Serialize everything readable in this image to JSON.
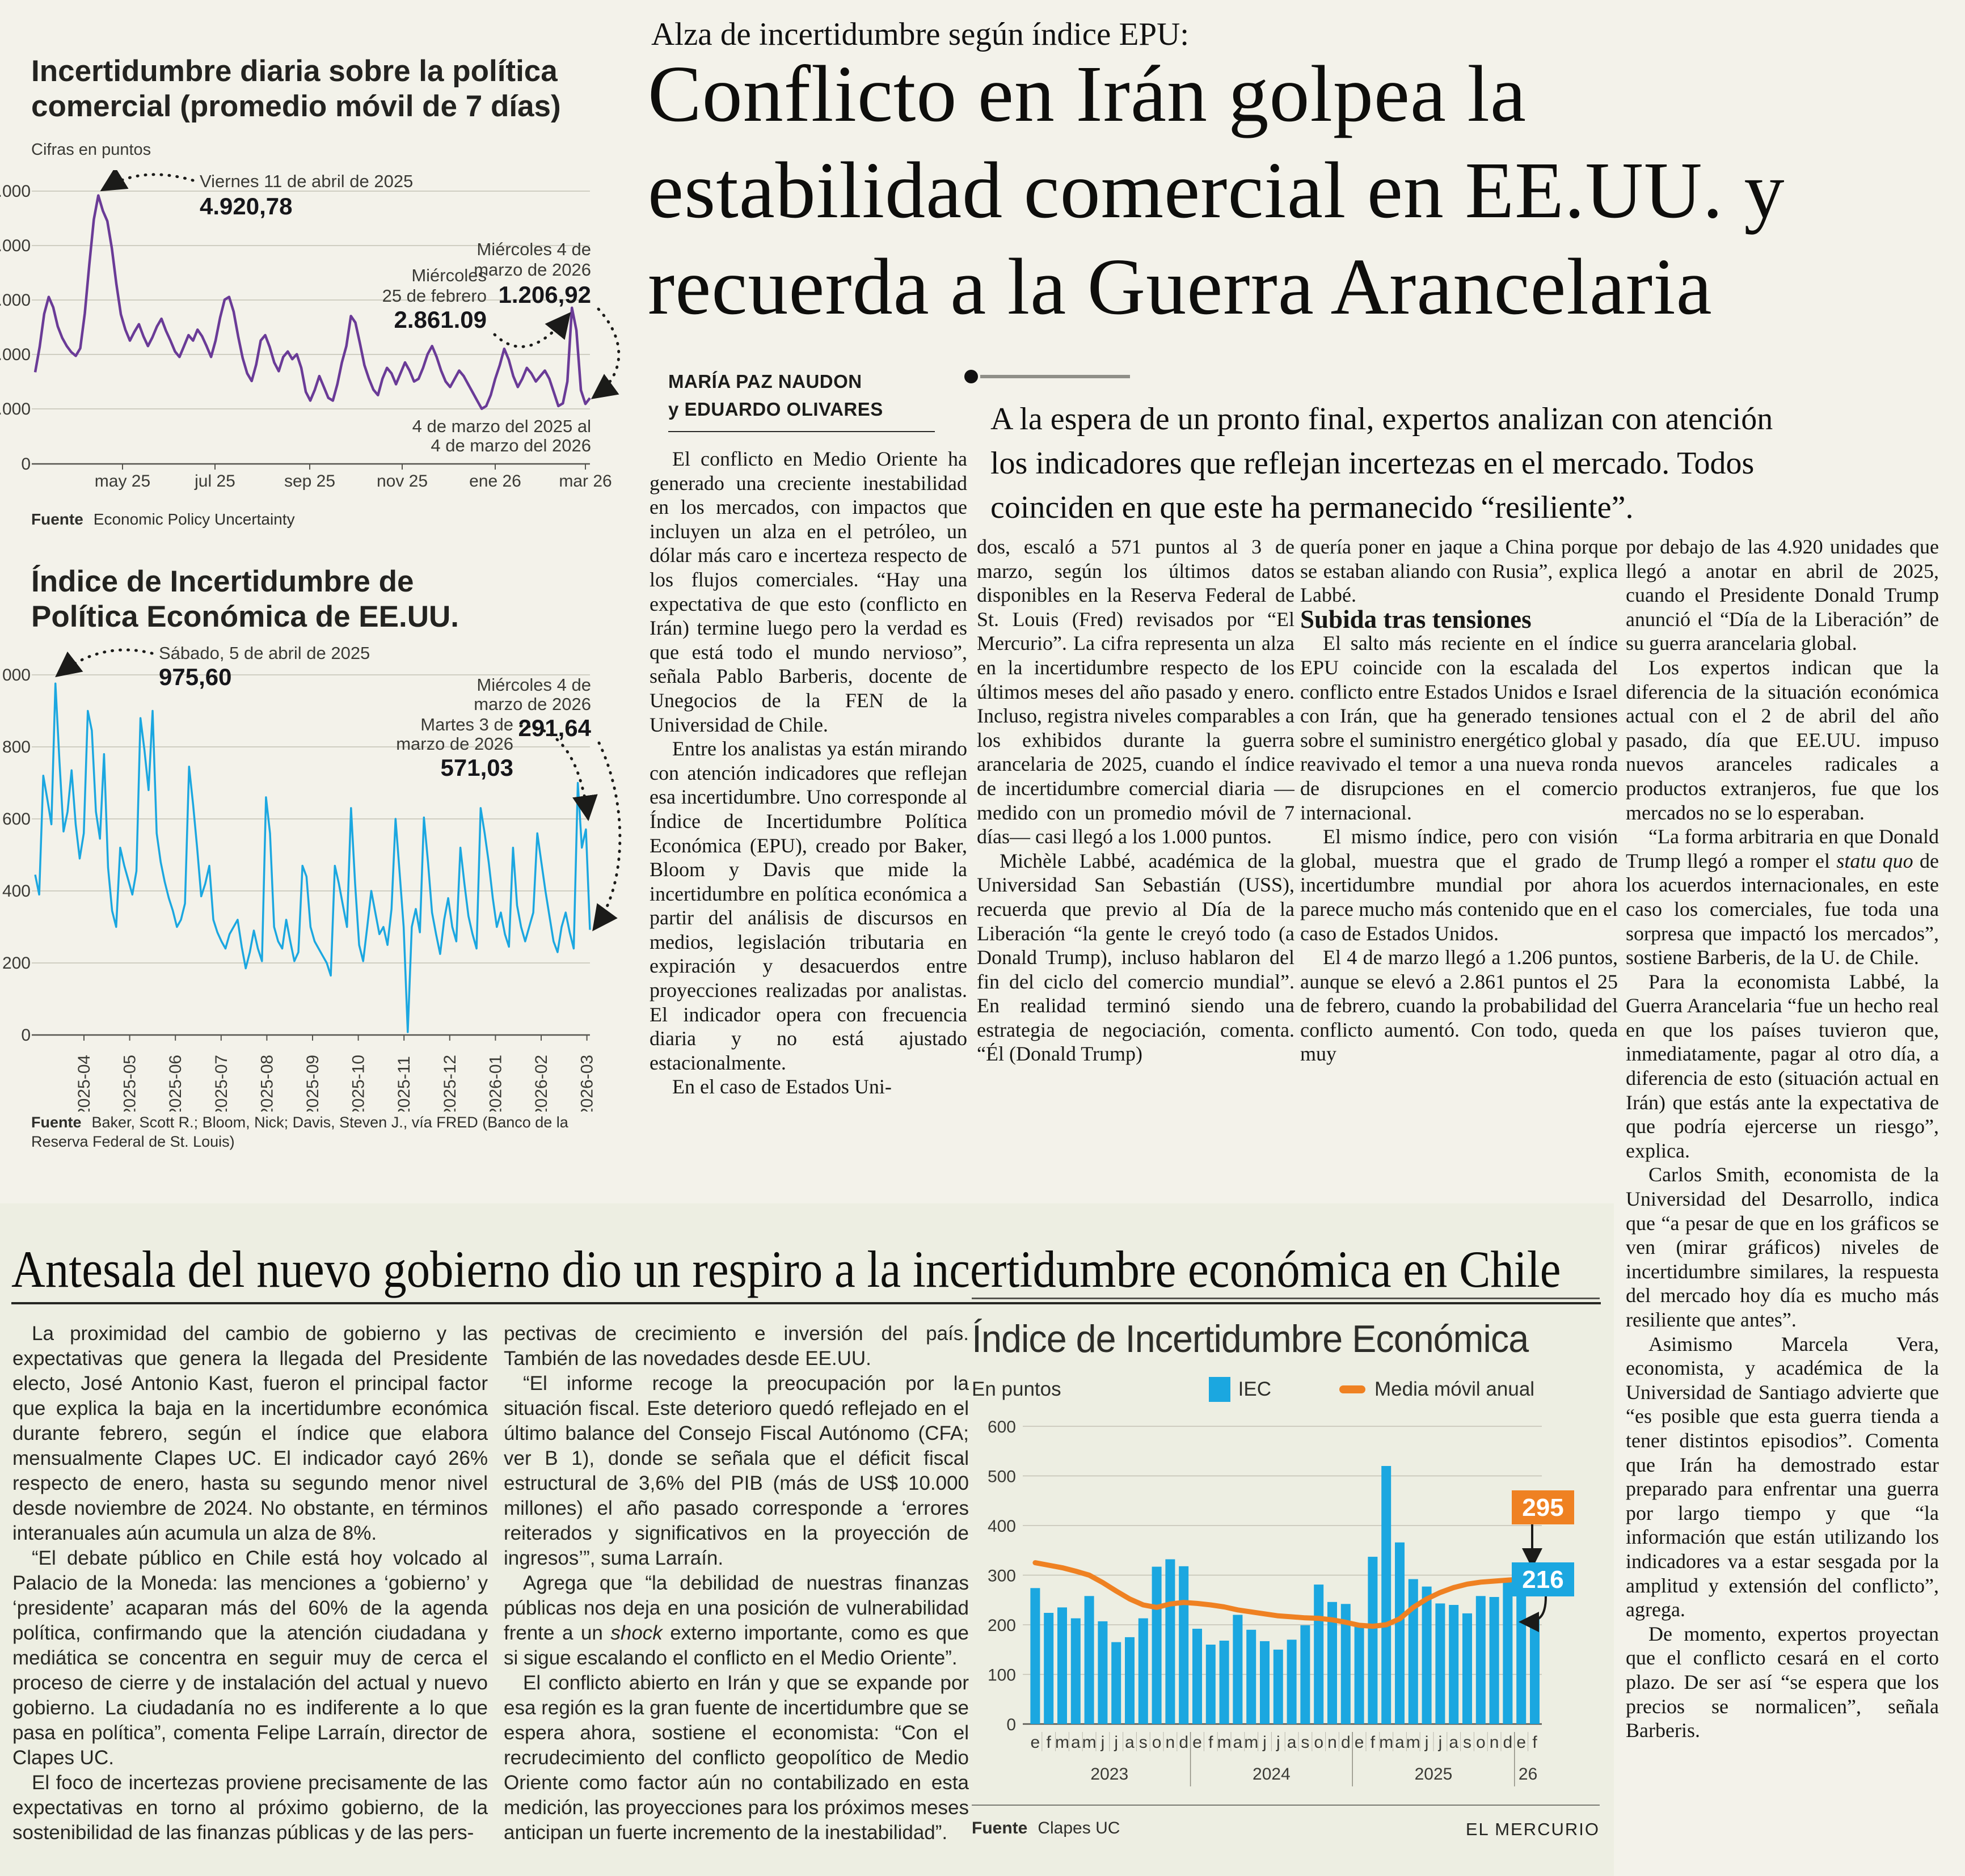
{
  "article": {
    "kicker": "Alza de incertidumbre según índice EPU:",
    "headline_lines": [
      "Conflicto en Irán golpea la",
      "estabilidad comercial en EE.UU. y",
      "recuerda a la Guerra Arancelaria"
    ],
    "byline_line1": "MARÍA PAZ NAUDON",
    "byline_line2": "y EDUARDO OLIVARES",
    "lead_lines": [
      "A la espera de un pronto final, expertos analizan con atención",
      "los indicadores que reflejan incertezas en el mercado. Todos",
      "coinciden en que este ha permanecido “resiliente”."
    ],
    "col1": [
      "El conflicto en Medio Oriente ha generado una creciente inestabilidad en los mercados, con impactos que incluyen un alza en el petróleo, un dólar más caro e incerteza respecto de los flujos comerciales. “Hay una expectativa de que esto (conflicto en Irán) termine luego pero la verdad es que está todo el mundo nervioso”, señala Pablo Barberis, docente de Unegocios de la FEN de la Universidad de Chile.",
      "Entre los analistas ya están mirando con atención indicadores que reflejan esa incertidumbre. Uno corresponde al Índice de Incertidumbre Política Económica (EPU), creado por Baker, Bloom y Davis que mide la incertidumbre en política económica a partir del análisis de discursos en medios, legislación tributaria en expiración y desacuerdos entre proyecciones realizadas por analistas. El indicador opera con frecuencia diaria y no está ajustado estacionalmente.",
      "En el caso de Estados Uni-"
    ],
    "col2": [
      "dos, escaló a 571 puntos al 3 de marzo, según los últimos datos disponibles en la Reserva Federal de St. Louis (Fred) revisados por “El Mercurio”. La cifra representa un alza en la incertidumbre respecto de los últimos meses del año pasado y enero. Incluso, registra niveles comparables a los exhibidos durante la guerra arancelaria de 2025, cuando el índice de incertidumbre comercial diaria —medido con un promedio móvil de 7 días— casi llegó a los 1.000 puntos.",
      "Michèle Labbé, académica de la Universidad San Sebastián (USS), recuerda que previo al Día de la Liberación “la gente le creyó todo (a Donald Trump), incluso hablaron del fin del ciclo del comercio mundial”. En realidad terminó siendo una estrategia de negociación, comenta. “Él (Donald Trump)"
    ],
    "col3_p1": "quería poner en jaque a China porque se estaban aliando con Rusia”, explica Labbé.",
    "subhead": "Subida tras tensiones",
    "col3_rest": [
      "El salto más reciente en el índice EPU coincide con la escalada del conflicto entre Estados Unidos e Israel con Irán, que ha generado tensiones sobre el suministro energético global y reavivado el temor a una nueva ronda de disrupciones en el comercio internacional.",
      "El mismo índice, pero con visión global, muestra que el grado de incertidumbre mundial por ahora parece mucho más contenido que en el caso de Estados Unidos.",
      "El 4 de marzo llegó a 1.206 puntos, aunque se elevó a 2.861 puntos el 25 de febrero, cuando la probabilidad del conflicto aumentó. Con todo, queda muy"
    ],
    "col4_p1": "por debajo de las 4.920 unidades que llegó a anotar en abril de 2025, cuando el Presidente Donald Trump anunció el “Día de la Liberación” de su guerra arancelaria global.",
    "col4_p2": "Los expertos indican que la diferencia de la situación económica actual con el 2 de abril del año pasado, día que EE.UU. impuso nuevos aranceles radicales a productos extranjeros, fue que los mercados no se lo esperaban.",
    "col4_p3_pre": "“La forma arbitraria en que Donald Trump llegó a romper el ",
    "col4_p3_it": "statu quo",
    "col4_p3_post": " de los acuerdos internacionales, en este caso los comerciales, fue toda una sorpresa que impactó los mercados”, sostiene Barberis, de la U. de Chile.",
    "col4_p4": "Para la economista Labbé, la Guerra Arancelaria “fue un hecho real en que los países tuvieron que, inmediatamente, pagar al otro día, a diferencia de esto (situación actual en Irán) que estás ante la expectativa de que podría ejercerse un riesgo”, explica.",
    "col4_p5": "Carlos Smith, economista de la Universidad del Desarrollo, indica que “a pesar de que en los gráficos se ven (mirar gráficos) niveles de incertidumbre similares, la respuesta del mercado hoy día es mucho más resiliente que antes”.",
    "col4_p6": "Asimismo Marcela Vera, economista, y académica de la Universidad de Santiago advierte que “es posible que esta guerra tienda a tener distintos episodios”. Comenta que Irán ha demostrado estar preparado para enfrentar una guerra por largo tiempo y que “la información que están utilizando los indicadores va a estar sesgada por la amplitud y extensión del conflicto”, agrega.",
    "col4_p7": "De momento, expertos proyectan que el conflicto cesará en el corto plazo. De ser así “se espera que los precios se normalicen”, señala Barberis."
  },
  "bottom": {
    "headline": "Antesala del nuevo gobierno dio un respiro a la incertidumbre económica en Chile",
    "colA": [
      "La proximidad del cambio de gobierno y las expectativas que genera la llegada del Presidente electo, José Antonio Kast, fueron el principal factor que explica la baja en la incertidumbre económica durante febrero, según el índice que elabora mensualmente Clapes UC. El indicador cayó 26% respecto de enero, hasta su segundo menor nivel desde noviembre de 2024. No obstante, en términos interanuales aún acumula un alza de 8%.",
      "“El debate público en Chile está hoy volcado al Palacio de la Moneda: las menciones a ‘gobierno’ y ‘presidente’ acaparan más del 60% de la agenda política, confirmando que la atención ciudadana y mediática se concentra en seguir muy de cerca el proceso de cierre y de instalación del actual y nuevo gobierno. La ciudadanía no es indiferente a lo que pasa en política”, comenta Felipe Larraín, director de Clapes UC.",
      "El foco de incertezas proviene precisamente de las expectativas en torno al próximo gobierno, de la sostenibilidad de las finanzas públicas y de las pers-"
    ],
    "colB_p1": "pectivas de crecimiento e inversión del país. También de las novedades desde EE.UU.",
    "colB_p2": "“El informe recoge la preocupación por la situación fiscal. Este deterioro quedó reflejado en el último balance del Consejo Fiscal Autónomo (CFA; ver B 1), donde se señala que el déficit fiscal estructural de 3,6% del PIB (más de US$ 10.000 millones) el año pasado corresponde a ‘errores reiterados y significativos en la proyección de ingresos’”, suma Larraín.",
    "colB_p3_pre": "Agrega que “la debilidad de nuestras finanzas públicas nos deja en una posición de vulnerabilidad frente a un ",
    "colB_p3_it": "shock",
    "colB_p3_post": " externo importante, como es que si sigue escalando el conflicto en el Medio Oriente”.",
    "colB_p4": "El conflicto abierto en Irán y que se expande por esa región es la gran fuente de incertidumbre que se espera ahora, sostiene el economista: “Con el recrudecimiento del conflicto geopolítico de Medio Oriente como factor aún no contabilizado en esta medición, las proyecciones para los próximos meses anticipan un fuerte incremento de la inestabilidad”.",
    "credit": "EL MERCURIO"
  },
  "chart_data": [
    {
      "type": "line",
      "title_line1": "Incertidumbre diaria sobre la política",
      "title_line2": "comercial (promedio móvil de 7 días)",
      "subtitle": "Cifras en puntos",
      "source_label": "Fuente",
      "source": "Economic Policy Uncertainty",
      "line_color": "#6a3b97",
      "ylim": [
        0,
        5000
      ],
      "y_ticks_displayed": [
        ".000",
        ".000",
        ".000",
        ".000",
        ".000",
        "0"
      ],
      "x_ticks": [
        "may 25",
        "jul 25",
        "sep 25",
        "nov 25",
        "ene 26",
        "mar 26"
      ],
      "ann_peak_label": "Viernes 11 de abril de 2025",
      "ann_peak_value": "4.920,78",
      "ann_feb_label1": "Miércoles",
      "ann_feb_label2": "25 de febrero",
      "ann_feb_value": "2.861.09",
      "ann_end_label1": "Miércoles 4 de",
      "ann_end_label2": "marzo de 2026",
      "ann_end_value": "1.206,92",
      "range_note1": "4 de marzo del 2025 al",
      "range_note2": "4 de marzo del 2026",
      "values": [
        1680,
        2150,
        2750,
        3060,
        2870,
        2520,
        2310,
        2160,
        2050,
        1980,
        2120,
        2760,
        3650,
        4480,
        4920,
        4640,
        4450,
        3950,
        3300,
        2740,
        2460,
        2260,
        2420,
        2560,
        2340,
        2160,
        2320,
        2520,
        2660,
        2440,
        2260,
        2060,
        1960,
        2160,
        2360,
        2260,
        2460,
        2340,
        2160,
        1960,
        2260,
        2680,
        3010,
        3060,
        2790,
        2340,
        1940,
        1660,
        1520,
        1820,
        2260,
        2360,
        2140,
        1860,
        1700,
        1960,
        2060,
        1920,
        2010,
        1760,
        1320,
        1160,
        1360,
        1610,
        1410,
        1210,
        1160,
        1460,
        1860,
        2160,
        2710,
        2590,
        2210,
        1810,
        1560,
        1360,
        1260,
        1560,
        1760,
        1660,
        1460,
        1660,
        1860,
        1710,
        1510,
        1560,
        1760,
        2010,
        2160,
        1960,
        1710,
        1510,
        1410,
        1560,
        1710,
        1610,
        1460,
        1310,
        1160,
        1010,
        1060,
        1260,
        1560,
        1810,
        2110,
        1910,
        1610,
        1410,
        1560,
        1760,
        1660,
        1510,
        1610,
        1710,
        1560,
        1310,
        1060,
        1110,
        1510,
        2861,
        2450,
        1350,
        1100,
        1207
      ]
    },
    {
      "type": "line",
      "title_line1": "Índice de Incertidumbre de",
      "title_line2": "Política Económica de EE.UU.",
      "source_label": "Fuente",
      "source": "Baker, Scott R.; Bloom, Nick; Davis, Steven J., vía FRED (Banco de la Reserva Federal de St. Louis)",
      "line_color": "#1ba7e0",
      "ylim": [
        0,
        1000
      ],
      "y_ticks_displayed": [
        "000",
        "800",
        "600",
        "400",
        "200",
        "0"
      ],
      "x_ticks": [
        "2025-04",
        "2025-05",
        "2025-06",
        "2025-07",
        "2025-08",
        "2025-09",
        "2025-10",
        "2025-11",
        "2025-12",
        "2026-01",
        "2026-02",
        "2026-03"
      ],
      "ann_peak_label": "Sábado, 5 de abril de 2025",
      "ann_peak_value": "975,60",
      "ann_mar3_label1": "Martes 3 de",
      "ann_mar3_label2": "marzo de 2026",
      "ann_mar3_value": "571,03",
      "ann_end_label1": "Miércoles 4 de",
      "ann_end_label2": "marzo de 2026",
      "ann_end_value": "291,64",
      "values": [
        445,
        390,
        720,
        655,
        585,
        976,
        760,
        565,
        620,
        735,
        585,
        490,
        560,
        900,
        845,
        620,
        545,
        780,
        465,
        345,
        300,
        520,
        470,
        430,
        390,
        455,
        880,
        790,
        680,
        900,
        560,
        480,
        425,
        380,
        345,
        300,
        320,
        365,
        745,
        640,
        520,
        385,
        420,
        470,
        320,
        285,
        260,
        240,
        280,
        300,
        320,
        245,
        185,
        230,
        290,
        240,
        205,
        660,
        560,
        300,
        260,
        240,
        320,
        260,
        205,
        230,
        470,
        440,
        300,
        260,
        240,
        220,
        200,
        165,
        470,
        420,
        360,
        300,
        630,
        420,
        250,
        205,
        300,
        400,
        340,
        280,
        300,
        250,
        350,
        600,
        450,
        300,
        8,
        300,
        350,
        285,
        604,
        480,
        340,
        280,
        225,
        320,
        380,
        300,
        260,
        520,
        420,
        330,
        280,
        240,
        630,
        560,
        480,
        380,
        300,
        340,
        280,
        245,
        520,
        360,
        300,
        260,
        300,
        340,
        560,
        480,
        400,
        330,
        260,
        230,
        300,
        340,
        285,
        240,
        700,
        520,
        571,
        292
      ]
    },
    {
      "type": "bar",
      "title": "Índice de Incertidumbre Económica",
      "unit": "En puntos",
      "legend_bar": "IEC",
      "legend_line": "Media móvil anual",
      "bar_color": "#1ba7e0",
      "line_color": "#ef8122",
      "ylim": [
        0,
        600
      ],
      "y_ticks": [
        "600",
        "500",
        "400",
        "300",
        "200",
        "100",
        "0"
      ],
      "months": [
        "e",
        "f",
        "m",
        "a",
        "m",
        "j",
        "j",
        "a",
        "s",
        "o",
        "n",
        "d",
        "e",
        "f",
        "m",
        "a",
        "m",
        "j",
        "j",
        "a",
        "s",
        "o",
        "n",
        "d",
        "e",
        "f",
        "m",
        "a",
        "m",
        "j",
        "j",
        "a",
        "s",
        "o",
        "n",
        "d",
        "e",
        "f"
      ],
      "years": [
        "2023",
        "2024",
        "2025",
        "26"
      ],
      "bars": [
        274,
        224,
        235,
        213,
        258,
        207,
        165,
        175,
        213,
        317,
        332,
        318,
        192,
        160,
        168,
        220,
        190,
        167,
        150,
        170,
        199,
        281,
        246,
        242,
        196,
        337,
        520,
        366,
        292,
        277,
        243,
        240,
        223,
        258,
        256,
        288,
        293,
        216
      ],
      "moving_avg": [
        325,
        320,
        315,
        308,
        300,
        285,
        268,
        252,
        240,
        235,
        242,
        245,
        243,
        240,
        236,
        230,
        226,
        222,
        218,
        216,
        214,
        213,
        210,
        205,
        199,
        197,
        200,
        212,
        235,
        252,
        265,
        275,
        282,
        286,
        288,
        290,
        292,
        295
      ],
      "ann_line_value": "295",
      "ann_bar_value": "216",
      "source_label": "Fuente",
      "source": "Clapes UC"
    }
  ]
}
